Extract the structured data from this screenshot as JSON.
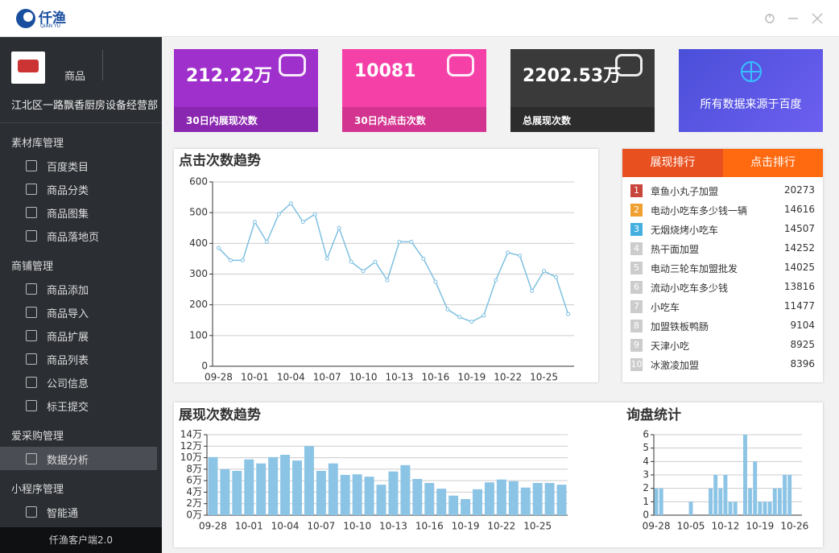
{
  "app": {
    "logo": "仟渔",
    "logo_sub": "QIAN YU",
    "footer": "仟渔客户端2.0"
  },
  "sidebar": {
    "shop_label": "商品",
    "company": "江北区一路飘香厨房设备经营部",
    "groups": [
      {
        "title": "素材库管理",
        "items": [
          "百度类目",
          "商品分类",
          "商品图集",
          "商品落地页"
        ]
      },
      {
        "title": "商铺管理",
        "items": [
          "商品添加",
          "商品导入",
          "商品扩展",
          "商品列表",
          "公司信息",
          "标王提交"
        ]
      },
      {
        "title": "爱采购管理",
        "items": [
          "数据分析"
        ]
      },
      {
        "title": "小程序管理",
        "items": [
          "智能通"
        ]
      }
    ]
  },
  "stats": [
    {
      "value": "212.22万",
      "label": "30日内展现次数",
      "color": "#a030cc",
      "strip": "#8a27b0"
    },
    {
      "value": "10081",
      "label": "30日内点击次数",
      "color": "#f540a8",
      "strip": "#d3348f"
    },
    {
      "value": "2202.53万",
      "label": "总展现次数",
      "color": "#3a3a3a",
      "strip": "#2c2c2c"
    }
  ],
  "banner": "所有数据来源于百度",
  "ranking": {
    "tabs": [
      "展现排行",
      "点击排行"
    ],
    "rows": [
      {
        "rank": "1",
        "keyword": "章鱼小丸子加盟",
        "count": "20273"
      },
      {
        "rank": "2",
        "keyword": "电动小吃车多少钱一辆",
        "count": "14616"
      },
      {
        "rank": "3",
        "keyword": "无烟烧烤小吃车",
        "count": "14507"
      },
      {
        "rank": "4",
        "keyword": "热干面加盟",
        "count": "14252"
      },
      {
        "rank": "5",
        "keyword": "电动三轮车加盟批发",
        "count": "14025"
      },
      {
        "rank": "6",
        "keyword": "流动小吃车多少钱",
        "count": "13816"
      },
      {
        "rank": "7",
        "keyword": "小吃车",
        "count": "11477"
      },
      {
        "rank": "8",
        "keyword": "加盟铁板鸭肠",
        "count": "9104"
      },
      {
        "rank": "9",
        "keyword": "天津小吃",
        "count": "8925"
      },
      {
        "rank": "10",
        "keyword": "冰激凌加盟",
        "count": "8396"
      }
    ]
  },
  "chart_data": [
    {
      "type": "line",
      "title": "点击次数趋势",
      "color": "#7ec0e0",
      "categories": [
        "09-28",
        null,
        null,
        "10-01",
        null,
        null,
        "10-04",
        null,
        null,
        "10-07",
        null,
        null,
        "10-10",
        null,
        null,
        "10-13",
        null,
        null,
        "10-16",
        null,
        null,
        "10-19",
        null,
        null,
        "10-22",
        null,
        null,
        "10-25",
        null,
        null
      ],
      "values": [
        385,
        345,
        345,
        470,
        405,
        495,
        530,
        470,
        495,
        350,
        450,
        340,
        310,
        340,
        280,
        405,
        405,
        350,
        275,
        185,
        160,
        145,
        165,
        280,
        370,
        360,
        245,
        310,
        290,
        170
      ],
      "ylim": [
        0,
        600
      ],
      "yticks": [
        0,
        100,
        200,
        300,
        400,
        500,
        600
      ],
      "grid": true
    },
    {
      "type": "bar",
      "title": "展现次数趋势",
      "color": "#8cc4e6",
      "categories": [
        "09-28",
        null,
        null,
        "10-01",
        null,
        null,
        "10-04",
        null,
        null,
        "10-07",
        null,
        null,
        "10-10",
        null,
        null,
        "10-13",
        null,
        null,
        "10-16",
        null,
        null,
        "10-19",
        null,
        null,
        "10-22",
        null,
        null,
        "10-25",
        null,
        null
      ],
      "values": [
        101000,
        80000,
        77000,
        97000,
        90000,
        101000,
        105000,
        95000,
        120000,
        77000,
        90000,
        70000,
        71000,
        67000,
        53000,
        76000,
        87000,
        63000,
        56000,
        46000,
        34000,
        28000,
        45000,
        57000,
        62000,
        59000,
        48000,
        56000,
        56000,
        53000
      ],
      "ylim": [
        0,
        140000
      ],
      "yticks": [
        {
          "value": 0,
          "label": "0万"
        },
        {
          "value": 20000,
          "label": "2万"
        },
        {
          "value": 40000,
          "label": "4万"
        },
        {
          "value": 60000,
          "label": "6万"
        },
        {
          "value": 80000,
          "label": "8万"
        },
        {
          "value": 100000,
          "label": "10万"
        },
        {
          "value": 120000,
          "label": "12万"
        },
        {
          "value": 140000,
          "label": "14万"
        }
      ],
      "grid": true
    },
    {
      "type": "bar",
      "title": "询盘统计",
      "color": "#8cc4e6",
      "categories": [
        "09-28",
        null,
        null,
        null,
        null,
        null,
        null,
        "10-05",
        null,
        null,
        null,
        null,
        null,
        null,
        "10-12",
        null,
        null,
        null,
        null,
        null,
        null,
        "10-19",
        null,
        null,
        null,
        null,
        null,
        null,
        "10-26",
        null
      ],
      "values": [
        2,
        2,
        0,
        0,
        0,
        0,
        0,
        1,
        0,
        0,
        0,
        2,
        3,
        2,
        3,
        1,
        1,
        0,
        6,
        2,
        4,
        1,
        1,
        1,
        2,
        2,
        3,
        3,
        0,
        0
      ],
      "ylim": [
        0,
        6
      ],
      "yticks": [
        0,
        1,
        2,
        3,
        4,
        5,
        6
      ],
      "grid": true
    }
  ]
}
